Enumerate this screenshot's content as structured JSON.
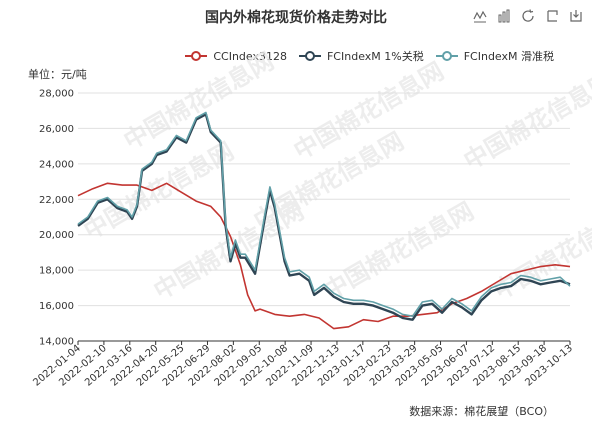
{
  "title": "国内外棉花现货价格走势对比",
  "unit_label": "单位：元/吨",
  "source_label": "数据来源：棉花展望（BCO）",
  "watermark_text": "中国棉花信息网",
  "toolbox": [
    "line-icon",
    "bar-icon",
    "restore-icon",
    "export-icon",
    "download-icon"
  ],
  "legend": [
    {
      "name": "CCIndex3128",
      "color": "#c23531"
    },
    {
      "name": "FCIndexM 1%关税",
      "color": "#2f4554"
    },
    {
      "name": "FCIndexM 滑准税",
      "color": "#61a0a8"
    }
  ],
  "chart_data": {
    "type": "line",
    "y_ticks": [
      "28,000",
      "26,000",
      "24,000",
      "22,000",
      "20,000",
      "18,000",
      "16,000",
      "14,000"
    ],
    "ylim": [
      14000,
      28000
    ],
    "x_ticks": [
      "2022-01-04",
      "2022-02-10",
      "2022-03-16",
      "2022-04-20",
      "2022-05-25",
      "2022-06-29",
      "2022-08-02",
      "2022-09-05",
      "2022-10-08",
      "2022-11-09",
      "2022-12-13",
      "2023-01-17",
      "2023-02-23",
      "2023-03-29",
      "2023-05-05",
      "2023-06-07",
      "2023-07-12",
      "2023-08-15",
      "2023-09-18",
      "2023-10-13"
    ],
    "series": [
      {
        "name": "CCIndex3128",
        "x": [
          0,
          0.03,
          0.06,
          0.09,
          0.12,
          0.15,
          0.18,
          0.21,
          0.24,
          0.27,
          0.29,
          0.31,
          0.33,
          0.345,
          0.36,
          0.37,
          0.38,
          0.4,
          0.43,
          0.46,
          0.49,
          0.52,
          0.55,
          0.58,
          0.61,
          0.64,
          0.67,
          0.7,
          0.73,
          0.76,
          0.79,
          0.82,
          0.85,
          0.88,
          0.91,
          0.94,
          0.97,
          1.0
        ],
        "y": [
          22200,
          22600,
          22900,
          22800,
          22800,
          22500,
          22900,
          22400,
          21900,
          21600,
          21000,
          19900,
          18300,
          16600,
          15700,
          15800,
          15700,
          15500,
          15400,
          15500,
          15300,
          14700,
          14800,
          15200,
          15100,
          15400,
          15400,
          15500,
          15600,
          16100,
          16400,
          16800,
          17300,
          17800,
          18000,
          18200,
          18300,
          18200
        ]
      },
      {
        "name": "FCIndexM 1%关税",
        "x": [
          0,
          0.02,
          0.04,
          0.06,
          0.08,
          0.1,
          0.11,
          0.12,
          0.13,
          0.15,
          0.16,
          0.18,
          0.2,
          0.22,
          0.24,
          0.26,
          0.27,
          0.29,
          0.3,
          0.31,
          0.32,
          0.33,
          0.34,
          0.36,
          0.38,
          0.39,
          0.4,
          0.42,
          0.43,
          0.45,
          0.47,
          0.48,
          0.5,
          0.52,
          0.54,
          0.56,
          0.58,
          0.6,
          0.62,
          0.64,
          0.66,
          0.68,
          0.7,
          0.72,
          0.74,
          0.76,
          0.78,
          0.8,
          0.82,
          0.84,
          0.86,
          0.88,
          0.9,
          0.92,
          0.94,
          0.96,
          0.98,
          1.0
        ],
        "y": [
          20500,
          20900,
          21800,
          22000,
          21500,
          21300,
          20900,
          21600,
          23600,
          24000,
          24500,
          24700,
          25500,
          25200,
          26500,
          26800,
          25800,
          25200,
          20500,
          18500,
          19500,
          18700,
          18700,
          17800,
          21000,
          22500,
          21500,
          18500,
          17700,
          17800,
          17400,
          16600,
          17000,
          16500,
          16200,
          16100,
          16100,
          16000,
          15800,
          15600,
          15300,
          15200,
          16000,
          16100,
          15600,
          16200,
          15900,
          15500,
          16300,
          16800,
          17000,
          17100,
          17500,
          17400,
          17200,
          17300,
          17400,
          17200
        ]
      },
      {
        "name": "FCIndexM 滑准税",
        "x": [
          0,
          0.02,
          0.04,
          0.06,
          0.08,
          0.1,
          0.11,
          0.12,
          0.13,
          0.15,
          0.16,
          0.18,
          0.2,
          0.22,
          0.24,
          0.26,
          0.27,
          0.29,
          0.3,
          0.31,
          0.32,
          0.33,
          0.34,
          0.36,
          0.38,
          0.39,
          0.4,
          0.42,
          0.43,
          0.45,
          0.47,
          0.48,
          0.5,
          0.52,
          0.54,
          0.56,
          0.58,
          0.6,
          0.62,
          0.64,
          0.66,
          0.68,
          0.7,
          0.72,
          0.74,
          0.76,
          0.78,
          0.8,
          0.82,
          0.84,
          0.86,
          0.88,
          0.9,
          0.92,
          0.94,
          0.96,
          0.98,
          1.0
        ],
        "y": [
          20600,
          21000,
          21900,
          22100,
          21600,
          21400,
          21000,
          21700,
          23700,
          24100,
          24600,
          24800,
          25600,
          25300,
          26600,
          26900,
          25900,
          25300,
          20700,
          18700,
          19700,
          18900,
          18900,
          18000,
          21200,
          22700,
          21700,
          18700,
          17900,
          18000,
          17600,
          16800,
          17200,
          16700,
          16400,
          16300,
          16300,
          16200,
          16000,
          15800,
          15500,
          15400,
          16200,
          16300,
          15800,
          16400,
          16100,
          15700,
          16500,
          17000,
          17200,
          17300,
          17700,
          17600,
          17400,
          17500,
          17600,
          17100
        ]
      }
    ]
  }
}
